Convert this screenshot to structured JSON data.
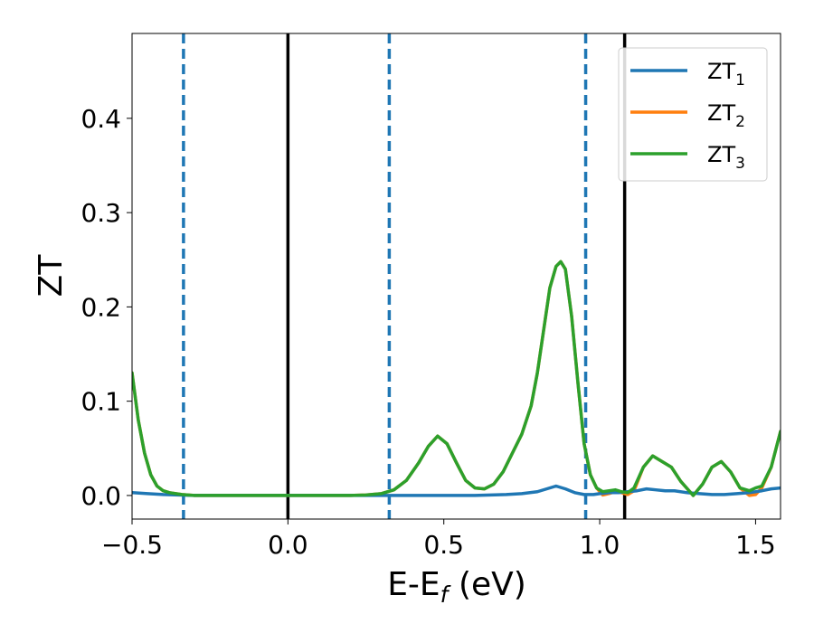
{
  "chart_data": {
    "type": "line",
    "title": "",
    "xlabel": "E-E",
    "xlabel_sub": "f",
    "xlabel_unit": "(eV)",
    "ylabel": "ZT",
    "xlim": [
      -0.5,
      1.58
    ],
    "ylim": [
      -0.025,
      0.49
    ],
    "xticks": [
      -0.5,
      0.0,
      0.5,
      1.0,
      1.5
    ],
    "xtick_labels": [
      "−0.5",
      "0.0",
      "0.5",
      "1.0",
      "1.5"
    ],
    "yticks": [
      0.0,
      0.1,
      0.2,
      0.3,
      0.4
    ],
    "ytick_labels": [
      "0.0",
      "0.1",
      "0.2",
      "0.3",
      "0.4"
    ],
    "grid": false,
    "legend_position": "top-right",
    "series": [
      {
        "name": "ZT",
        "name_sub": "1",
        "color": "#1f77b4",
        "x": [
          -0.5,
          -0.45,
          -0.4,
          -0.35,
          -0.3,
          -0.2,
          -0.1,
          0.0,
          0.1,
          0.2,
          0.3,
          0.4,
          0.5,
          0.6,
          0.7,
          0.75,
          0.8,
          0.83,
          0.86,
          0.89,
          0.92,
          0.95,
          0.98,
          1.0,
          1.03,
          1.06,
          1.09,
          1.12,
          1.15,
          1.18,
          1.21,
          1.24,
          1.28,
          1.32,
          1.36,
          1.4,
          1.44,
          1.48,
          1.52,
          1.55,
          1.58
        ],
        "y": [
          0.003,
          0.002,
          0.001,
          0.0005,
          0.0,
          0.0,
          0.0,
          0.0,
          0.0,
          0.0,
          0.0,
          0.0,
          0.0,
          0.0,
          0.001,
          0.002,
          0.004,
          0.007,
          0.01,
          0.007,
          0.003,
          0.001,
          0.001,
          0.002,
          0.003,
          0.003,
          0.004,
          0.005,
          0.007,
          0.006,
          0.005,
          0.005,
          0.003,
          0.002,
          0.001,
          0.001,
          0.002,
          0.003,
          0.005,
          0.007,
          0.008
        ]
      },
      {
        "name": "ZT",
        "name_sub": "2",
        "color": "#ff7f0e",
        "x": [
          -0.5,
          -0.48,
          -0.46,
          -0.44,
          -0.42,
          -0.4,
          -0.38,
          -0.36,
          -0.34,
          -0.3,
          -0.25,
          -0.2,
          -0.1,
          0.0,
          0.1,
          0.2,
          0.25,
          0.3,
          0.34,
          0.38,
          0.42,
          0.45,
          0.48,
          0.51,
          0.54,
          0.57,
          0.6,
          0.63,
          0.66,
          0.69,
          0.72,
          0.75,
          0.78,
          0.8,
          0.82,
          0.84,
          0.86,
          0.875,
          0.89,
          0.91,
          0.93,
          0.95,
          0.97,
          0.99,
          1.01,
          1.03,
          1.05,
          1.07,
          1.09,
          1.11,
          1.14,
          1.17,
          1.2,
          1.23,
          1.26,
          1.3,
          1.33,
          1.36,
          1.39,
          1.42,
          1.45,
          1.48,
          1.5,
          1.52,
          1.55,
          1.58
        ],
        "y": [
          0.13,
          0.08,
          0.045,
          0.022,
          0.01,
          0.005,
          0.003,
          0.002,
          0.001,
          0.0,
          0.0,
          0.0,
          0.0,
          0.0,
          0.0,
          0.0,
          0.0005,
          0.002,
          0.006,
          0.016,
          0.035,
          0.052,
          0.063,
          0.055,
          0.035,
          0.016,
          0.008,
          0.007,
          0.012,
          0.025,
          0.045,
          0.065,
          0.095,
          0.13,
          0.175,
          0.22,
          0.243,
          0.248,
          0.24,
          0.19,
          0.12,
          0.055,
          0.022,
          0.008,
          0.0005,
          0.002,
          0.004,
          0.003,
          0.001,
          0.005,
          0.03,
          0.042,
          0.036,
          0.03,
          0.015,
          0.0,
          0.012,
          0.03,
          0.036,
          0.025,
          0.008,
          0.0,
          0.001,
          0.008,
          0.03,
          0.068
        ]
      },
      {
        "name": "ZT",
        "name_sub": "3",
        "color": "#2ca02c",
        "x": [
          -0.5,
          -0.48,
          -0.46,
          -0.44,
          -0.42,
          -0.4,
          -0.38,
          -0.36,
          -0.34,
          -0.3,
          -0.25,
          -0.2,
          -0.1,
          0.0,
          0.1,
          0.2,
          0.25,
          0.3,
          0.34,
          0.38,
          0.42,
          0.45,
          0.48,
          0.51,
          0.54,
          0.57,
          0.6,
          0.63,
          0.66,
          0.69,
          0.72,
          0.75,
          0.78,
          0.8,
          0.82,
          0.84,
          0.86,
          0.875,
          0.89,
          0.91,
          0.93,
          0.95,
          0.97,
          0.99,
          1.01,
          1.03,
          1.05,
          1.07,
          1.09,
          1.11,
          1.14,
          1.17,
          1.2,
          1.23,
          1.26,
          1.3,
          1.33,
          1.36,
          1.39,
          1.42,
          1.45,
          1.48,
          1.5,
          1.52,
          1.55,
          1.58
        ],
        "y": [
          0.13,
          0.08,
          0.045,
          0.022,
          0.01,
          0.005,
          0.003,
          0.002,
          0.001,
          0.0,
          0.0,
          0.0,
          0.0,
          0.0,
          0.0,
          0.0,
          0.0005,
          0.002,
          0.006,
          0.016,
          0.035,
          0.052,
          0.063,
          0.055,
          0.035,
          0.016,
          0.008,
          0.007,
          0.012,
          0.025,
          0.045,
          0.065,
          0.095,
          0.13,
          0.175,
          0.22,
          0.243,
          0.248,
          0.24,
          0.19,
          0.12,
          0.055,
          0.022,
          0.008,
          0.004,
          0.005,
          0.006,
          0.004,
          0.003,
          0.008,
          0.03,
          0.042,
          0.036,
          0.03,
          0.015,
          0.0,
          0.012,
          0.03,
          0.036,
          0.025,
          0.008,
          0.005,
          0.008,
          0.01,
          0.03,
          0.068
        ]
      }
    ],
    "vlines": [
      {
        "x": -0.335,
        "style": "dashed",
        "color": "#1f77b4"
      },
      {
        "x": 0.0,
        "style": "solid",
        "color": "#000000"
      },
      {
        "x": 0.325,
        "style": "dashed",
        "color": "#1f77b4"
      },
      {
        "x": 0.955,
        "style": "dashed",
        "color": "#1f77b4"
      },
      {
        "x": 1.08,
        "style": "solid",
        "color": "#000000"
      }
    ]
  }
}
